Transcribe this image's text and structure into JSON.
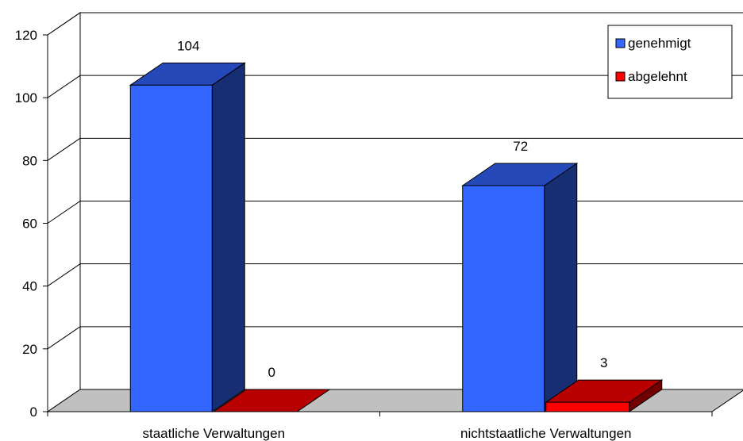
{
  "chart_data": {
    "type": "bar",
    "title": "",
    "xlabel": "",
    "ylabel": "",
    "categories": [
      "staatliche Verwaltungen",
      "nichtstaatliche Verwaltungen"
    ],
    "series": [
      {
        "name": "genehmigt",
        "values": [
          104,
          72
        ],
        "color": "#3366FF"
      },
      {
        "name": "abgelehnt",
        "values": [
          0,
          3
        ],
        "color": "#FF0000"
      }
    ],
    "data_labels": [
      [
        "104",
        "0"
      ],
      [
        "72",
        "3"
      ]
    ],
    "ylim": [
      0,
      120
    ],
    "yticks": [
      0,
      20,
      40,
      60,
      80,
      100,
      120
    ],
    "ytick_labels": [
      "0",
      "20",
      "40",
      "60",
      "80",
      "100",
      "120"
    ],
    "grid": true,
    "legend_position": "top-right",
    "style": "3d-column",
    "colors": {
      "floor": "#C0C0C0",
      "gridline": "#000000",
      "background": "#FFFFFF"
    }
  }
}
